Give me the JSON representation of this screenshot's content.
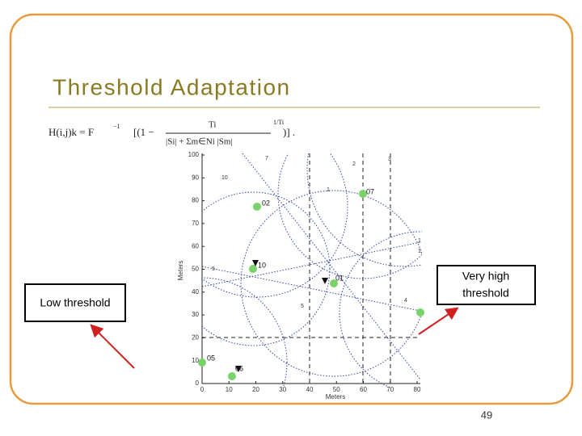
{
  "slide": {
    "title": "Threshold Adaptation",
    "formula": {
      "lhs": "H(i,j)k = F",
      "inv": "−1",
      "body": "[(1 −",
      "num": "Ti",
      "den": "|Si| + Σm∈Ni |Sm|",
      "exp": "1/Ti",
      "tail": ")] ."
    },
    "figure": {
      "yticks": [
        "0",
        "10",
        "20",
        "30",
        "40",
        "50",
        "60",
        "70",
        "80",
        "90",
        "100"
      ],
      "xticks": [
        "0",
        "10",
        "20",
        "30",
        "40",
        "50",
        "60",
        "70",
        "80"
      ],
      "xlabel": "Meters",
      "ylabel": "Meters",
      "nodes": [
        "02",
        "07",
        "10",
        "01",
        "05",
        "06"
      ],
      "small_labels": [
        "7",
        "2",
        "3",
        "10",
        "1",
        "5",
        "4",
        "1",
        "1",
        "5"
      ]
    },
    "callouts": {
      "low": "Low threshold",
      "high": [
        "Very high",
        "threshold"
      ]
    },
    "page_number": "49"
  }
}
